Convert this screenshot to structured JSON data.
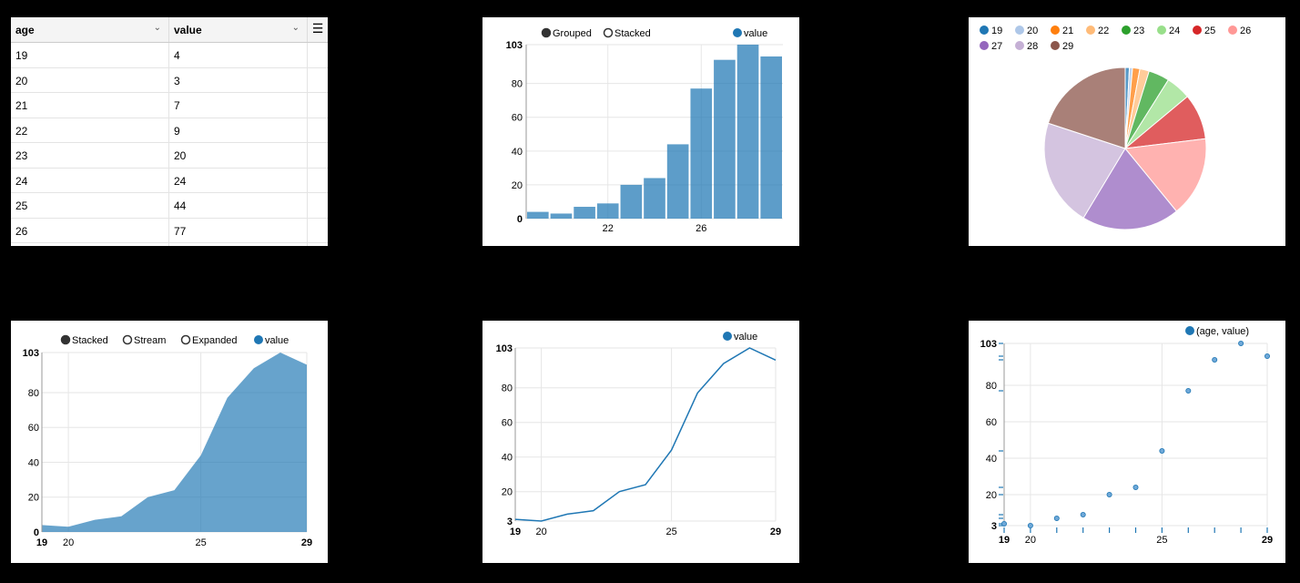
{
  "table": {
    "columns": [
      "age",
      "value"
    ],
    "rows": [
      [
        "19",
        "4"
      ],
      [
        "20",
        "3"
      ],
      [
        "21",
        "7"
      ],
      [
        "22",
        "9"
      ],
      [
        "23",
        "20"
      ],
      [
        "24",
        "24"
      ],
      [
        "25",
        "44"
      ],
      [
        "26",
        "77"
      ]
    ],
    "icons": {
      "sort": "chevron-down-icon",
      "menu": "hamburger-menu-icon"
    }
  },
  "chart_data": [
    {
      "type": "bar",
      "x": [
        19,
        20,
        21,
        22,
        23,
        24,
        25,
        26,
        27,
        28,
        29
      ],
      "series": [
        {
          "name": "value",
          "values": [
            4,
            3,
            7,
            9,
            20,
            24,
            44,
            77,
            94,
            103,
            96
          ]
        }
      ],
      "controls": [
        "Grouped",
        "Stacked"
      ],
      "selected_control": "Grouped",
      "x_ticks": [
        "22",
        "26"
      ],
      "y_ticks": [
        "0",
        "20",
        "40",
        "60",
        "80",
        "103"
      ],
      "ylim": [
        0,
        103
      ],
      "grid": true,
      "legend": "top-right",
      "color": "#1f77b4"
    },
    {
      "type": "pie",
      "categories": [
        "19",
        "20",
        "21",
        "22",
        "23",
        "24",
        "25",
        "26",
        "27",
        "28",
        "29"
      ],
      "values": [
        4,
        3,
        7,
        9,
        20,
        24,
        44,
        77,
        94,
        103,
        96
      ],
      "colors": [
        "#1f77b4",
        "#aec7e8",
        "#ff7f0e",
        "#ffbb78",
        "#2ca02c",
        "#98df8a",
        "#d62728",
        "#ff9896",
        "#9467bd",
        "#c5b0d5",
        "#8c564b"
      ],
      "legend": "top"
    },
    {
      "type": "area",
      "x": [
        19,
        20,
        21,
        22,
        23,
        24,
        25,
        26,
        27,
        28,
        29
      ],
      "series": [
        {
          "name": "value",
          "values": [
            4,
            3,
            7,
            9,
            20,
            24,
            44,
            77,
            94,
            103,
            96
          ]
        }
      ],
      "controls": [
        "Stacked",
        "Stream",
        "Expanded"
      ],
      "selected_control": "Stacked",
      "x_ticks": [
        "19",
        "20",
        "25",
        "29"
      ],
      "y_ticks": [
        "0",
        "20",
        "40",
        "60",
        "80",
        "103"
      ],
      "ylim": [
        0,
        103
      ],
      "xlim": [
        19,
        29
      ],
      "grid": true,
      "legend": "top-right",
      "color": "#1f77b4"
    },
    {
      "type": "line",
      "x": [
        19,
        20,
        21,
        22,
        23,
        24,
        25,
        26,
        27,
        28,
        29
      ],
      "series": [
        {
          "name": "value",
          "values": [
            4,
            3,
            7,
            9,
            20,
            24,
            44,
            77,
            94,
            103,
            96
          ]
        }
      ],
      "x_ticks": [
        "19",
        "20",
        "25",
        "29"
      ],
      "y_ticks": [
        "3",
        "20",
        "40",
        "60",
        "80",
        "103"
      ],
      "ylim": [
        3,
        103
      ],
      "xlim": [
        19,
        29
      ],
      "grid": true,
      "legend": "top-right",
      "color": "#1f77b4"
    },
    {
      "type": "scatter",
      "x": [
        19,
        20,
        21,
        22,
        23,
        24,
        25,
        26,
        27,
        28,
        29
      ],
      "series": [
        {
          "name": "(age, value)",
          "values": [
            4,
            3,
            7,
            9,
            20,
            24,
            44,
            77,
            94,
            103,
            96
          ]
        }
      ],
      "x_ticks": [
        "19",
        "20",
        "25",
        "29"
      ],
      "y_ticks": [
        "3",
        "20",
        "40",
        "60",
        "80",
        "103"
      ],
      "ylim": [
        3,
        103
      ],
      "xlim": [
        19,
        29
      ],
      "grid": true,
      "legend": "top-right",
      "color": "#1f77b4"
    }
  ]
}
